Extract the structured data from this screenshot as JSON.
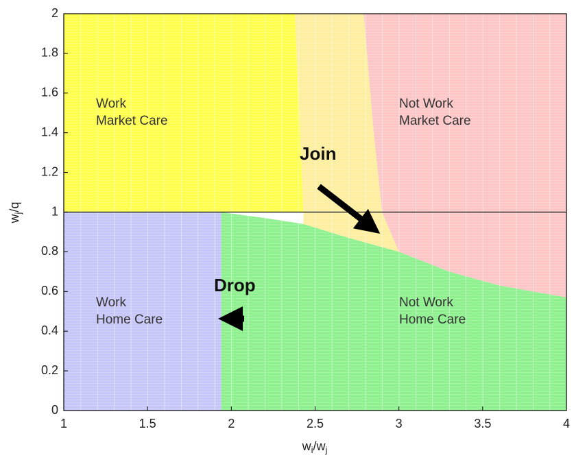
{
  "chart_data": {
    "type": "region",
    "x_label": [
      "w",
      "i",
      "/w",
      "j"
    ],
    "y_label": [
      "w",
      "j",
      "/q"
    ],
    "xlim": [
      1,
      4
    ],
    "ylim": [
      0,
      2
    ],
    "xticks": [
      1,
      1.5,
      2,
      2.5,
      3,
      3.5,
      4
    ],
    "yticks": [
      0,
      0.2,
      0.4,
      0.6,
      0.8,
      1,
      1.2,
      1.4,
      1.6,
      1.8,
      2
    ],
    "hline": 1,
    "series": [
      {
        "label": [
          "Work",
          "Market Care"
        ],
        "color": "#ffff4d",
        "x": [
          1,
          1,
          2.38,
          2.43
        ],
        "y": [
          1,
          2,
          2,
          1
        ]
      },
      {
        "color": "#fdeea0",
        "x": [
          2.38,
          2.79,
          2.85,
          2.9,
          3.0,
          2.7,
          2.43,
          2.43
        ],
        "y": [
          2,
          2,
          1.4,
          1,
          0.8,
          0.87,
          0.94,
          1
        ]
      },
      {
        "label": [
          "Not Work",
          "Market Care"
        ],
        "color": "#fcc6c6",
        "x": [
          2.79,
          4,
          4,
          3.6,
          3.3,
          3.0,
          2.9,
          2.85
        ],
        "y": [
          2,
          2,
          0.57,
          0.63,
          0.7,
          0.8,
          1,
          1.4
        ]
      },
      {
        "label": [
          "Work",
          "Home Care"
        ],
        "color": "#c6c6f8",
        "x": [
          1,
          1,
          1.94,
          1.94
        ],
        "y": [
          0,
          1,
          1,
          0
        ]
      },
      {
        "label": [
          "Not Work",
          "Home Care"
        ],
        "color": "#8ef08e",
        "x": [
          1.94,
          1.94,
          2.2,
          2.43,
          2.7,
          3.0,
          3.3,
          3.6,
          4,
          4
        ],
        "y": [
          0,
          1,
          0.97,
          0.94,
          0.87,
          0.8,
          0.7,
          0.63,
          0.57,
          0
        ]
      }
    ],
    "annotations": [
      "Join",
      "Drop"
    ]
  }
}
